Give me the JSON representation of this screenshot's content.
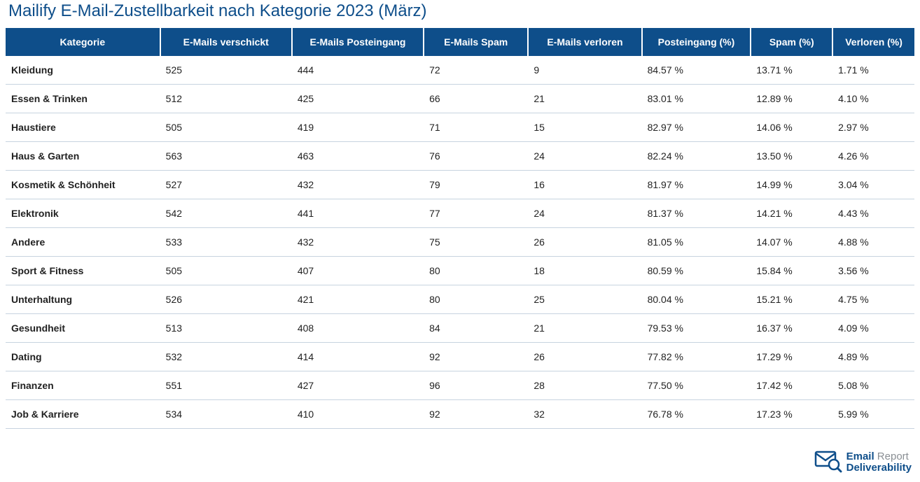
{
  "title": "Mailify E-Mail-Zustellbarkeit nach Kategorie 2023 (März)",
  "title_color": "#0e4e8a",
  "title_fontsize": 24,
  "header_bg": "#0e4e8a",
  "header_fg": "#ffffff",
  "row_border_color": "#c7d3df",
  "body_text_color": "#222222",
  "background_color": "#ffffff",
  "columns": [
    "Kategorie",
    "E-Mails verschickt",
    "E-Mails Posteingang",
    "E-Mails Spam",
    "E-Mails verloren",
    "Posteingang (%)",
    "Spam (%)",
    "Verloren (%)"
  ],
  "rows": [
    {
      "category": "Kleidung",
      "sent": "525",
      "inbox": "444",
      "spam": "72",
      "lost": "9",
      "inbox_pct": "84.57 %",
      "spam_pct": "13.71 %",
      "lost_pct": "1.71 %"
    },
    {
      "category": "Essen & Trinken",
      "sent": "512",
      "inbox": "425",
      "spam": "66",
      "lost": "21",
      "inbox_pct": "83.01 %",
      "spam_pct": "12.89 %",
      "lost_pct": "4.10 %"
    },
    {
      "category": "Haustiere",
      "sent": "505",
      "inbox": "419",
      "spam": "71",
      "lost": "15",
      "inbox_pct": "82.97 %",
      "spam_pct": "14.06 %",
      "lost_pct": "2.97 %"
    },
    {
      "category": "Haus & Garten",
      "sent": "563",
      "inbox": "463",
      "spam": "76",
      "lost": "24",
      "inbox_pct": "82.24 %",
      "spam_pct": "13.50 %",
      "lost_pct": "4.26 %"
    },
    {
      "category": "Kosmetik & Schönheit",
      "sent": "527",
      "inbox": "432",
      "spam": "79",
      "lost": "16",
      "inbox_pct": "81.97 %",
      "spam_pct": "14.99 %",
      "lost_pct": "3.04 %"
    },
    {
      "category": "Elektronik",
      "sent": "542",
      "inbox": "441",
      "spam": "77",
      "lost": "24",
      "inbox_pct": "81.37 %",
      "spam_pct": "14.21 %",
      "lost_pct": "4.43 %"
    },
    {
      "category": "Andere",
      "sent": "533",
      "inbox": "432",
      "spam": "75",
      "lost": "26",
      "inbox_pct": "81.05 %",
      "spam_pct": "14.07 %",
      "lost_pct": "4.88 %"
    },
    {
      "category": "Sport & Fitness",
      "sent": "505",
      "inbox": "407",
      "spam": "80",
      "lost": "18",
      "inbox_pct": "80.59 %",
      "spam_pct": "15.84 %",
      "lost_pct": "3.56 %"
    },
    {
      "category": "Unterhaltung",
      "sent": "526",
      "inbox": "421",
      "spam": "80",
      "lost": "25",
      "inbox_pct": "80.04 %",
      "spam_pct": "15.21 %",
      "lost_pct": "4.75 %"
    },
    {
      "category": "Gesundheit",
      "sent": "513",
      "inbox": "408",
      "spam": "84",
      "lost": "21",
      "inbox_pct": "79.53 %",
      "spam_pct": "16.37 %",
      "lost_pct": "4.09 %"
    },
    {
      "category": "Dating",
      "sent": "532",
      "inbox": "414",
      "spam": "92",
      "lost": "26",
      "inbox_pct": "77.82 %",
      "spam_pct": "17.29 %",
      "lost_pct": "4.89 %"
    },
    {
      "category": "Finanzen",
      "sent": "551",
      "inbox": "427",
      "spam": "96",
      "lost": "28",
      "inbox_pct": "77.50 %",
      "spam_pct": "17.42 %",
      "lost_pct": "5.08 %"
    },
    {
      "category": "Job & Karriere",
      "sent": "534",
      "inbox": "410",
      "spam": "92",
      "lost": "32",
      "inbox_pct": "76.78 %",
      "spam_pct": "17.23 %",
      "lost_pct": "5.99 %"
    }
  ],
  "footer_logo": {
    "line1_blue": "Email",
    "line1_grey": " Report",
    "line2": "Deliverability",
    "icon_color": "#0e4e8a"
  }
}
